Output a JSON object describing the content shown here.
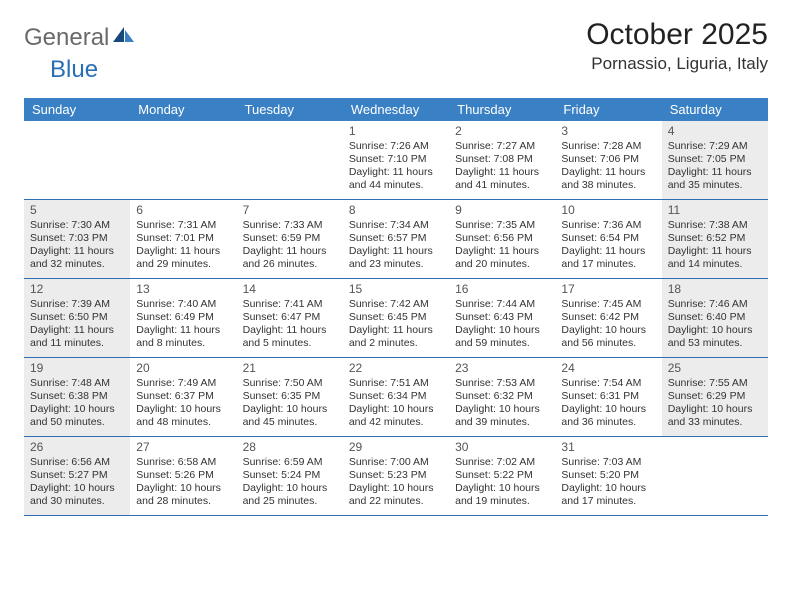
{
  "logo": {
    "gray": "General",
    "blue": "Blue"
  },
  "title": "October 2025",
  "location": "Pornassio, Liguria, Italy",
  "colors": {
    "header_bg": "#3a80c4",
    "header_text": "#ffffff",
    "border": "#2a6fb5",
    "shaded_bg": "#ececec",
    "logo_gray": "#6a6a6a",
    "logo_blue": "#2a6fb5"
  },
  "day_names": [
    "Sunday",
    "Monday",
    "Tuesday",
    "Wednesday",
    "Thursday",
    "Friday",
    "Saturday"
  ],
  "weeks": [
    [
      {
        "n": "",
        "shaded": false,
        "lines": []
      },
      {
        "n": "",
        "shaded": false,
        "lines": []
      },
      {
        "n": "",
        "shaded": false,
        "lines": []
      },
      {
        "n": "1",
        "shaded": false,
        "lines": [
          "Sunrise: 7:26 AM",
          "Sunset: 7:10 PM",
          "Daylight: 11 hours",
          "and 44 minutes."
        ]
      },
      {
        "n": "2",
        "shaded": false,
        "lines": [
          "Sunrise: 7:27 AM",
          "Sunset: 7:08 PM",
          "Daylight: 11 hours",
          "and 41 minutes."
        ]
      },
      {
        "n": "3",
        "shaded": false,
        "lines": [
          "Sunrise: 7:28 AM",
          "Sunset: 7:06 PM",
          "Daylight: 11 hours",
          "and 38 minutes."
        ]
      },
      {
        "n": "4",
        "shaded": true,
        "lines": [
          "Sunrise: 7:29 AM",
          "Sunset: 7:05 PM",
          "Daylight: 11 hours",
          "and 35 minutes."
        ]
      }
    ],
    [
      {
        "n": "5",
        "shaded": true,
        "lines": [
          "Sunrise: 7:30 AM",
          "Sunset: 7:03 PM",
          "Daylight: 11 hours",
          "and 32 minutes."
        ]
      },
      {
        "n": "6",
        "shaded": false,
        "lines": [
          "Sunrise: 7:31 AM",
          "Sunset: 7:01 PM",
          "Daylight: 11 hours",
          "and 29 minutes."
        ]
      },
      {
        "n": "7",
        "shaded": false,
        "lines": [
          "Sunrise: 7:33 AM",
          "Sunset: 6:59 PM",
          "Daylight: 11 hours",
          "and 26 minutes."
        ]
      },
      {
        "n": "8",
        "shaded": false,
        "lines": [
          "Sunrise: 7:34 AM",
          "Sunset: 6:57 PM",
          "Daylight: 11 hours",
          "and 23 minutes."
        ]
      },
      {
        "n": "9",
        "shaded": false,
        "lines": [
          "Sunrise: 7:35 AM",
          "Sunset: 6:56 PM",
          "Daylight: 11 hours",
          "and 20 minutes."
        ]
      },
      {
        "n": "10",
        "shaded": false,
        "lines": [
          "Sunrise: 7:36 AM",
          "Sunset: 6:54 PM",
          "Daylight: 11 hours",
          "and 17 minutes."
        ]
      },
      {
        "n": "11",
        "shaded": true,
        "lines": [
          "Sunrise: 7:38 AM",
          "Sunset: 6:52 PM",
          "Daylight: 11 hours",
          "and 14 minutes."
        ]
      }
    ],
    [
      {
        "n": "12",
        "shaded": true,
        "lines": [
          "Sunrise: 7:39 AM",
          "Sunset: 6:50 PM",
          "Daylight: 11 hours",
          "and 11 minutes."
        ]
      },
      {
        "n": "13",
        "shaded": false,
        "lines": [
          "Sunrise: 7:40 AM",
          "Sunset: 6:49 PM",
          "Daylight: 11 hours",
          "and 8 minutes."
        ]
      },
      {
        "n": "14",
        "shaded": false,
        "lines": [
          "Sunrise: 7:41 AM",
          "Sunset: 6:47 PM",
          "Daylight: 11 hours",
          "and 5 minutes."
        ]
      },
      {
        "n": "15",
        "shaded": false,
        "lines": [
          "Sunrise: 7:42 AM",
          "Sunset: 6:45 PM",
          "Daylight: 11 hours",
          "and 2 minutes."
        ]
      },
      {
        "n": "16",
        "shaded": false,
        "lines": [
          "Sunrise: 7:44 AM",
          "Sunset: 6:43 PM",
          "Daylight: 10 hours",
          "and 59 minutes."
        ]
      },
      {
        "n": "17",
        "shaded": false,
        "lines": [
          "Sunrise: 7:45 AM",
          "Sunset: 6:42 PM",
          "Daylight: 10 hours",
          "and 56 minutes."
        ]
      },
      {
        "n": "18",
        "shaded": true,
        "lines": [
          "Sunrise: 7:46 AM",
          "Sunset: 6:40 PM",
          "Daylight: 10 hours",
          "and 53 minutes."
        ]
      }
    ],
    [
      {
        "n": "19",
        "shaded": true,
        "lines": [
          "Sunrise: 7:48 AM",
          "Sunset: 6:38 PM",
          "Daylight: 10 hours",
          "and 50 minutes."
        ]
      },
      {
        "n": "20",
        "shaded": false,
        "lines": [
          "Sunrise: 7:49 AM",
          "Sunset: 6:37 PM",
          "Daylight: 10 hours",
          "and 48 minutes."
        ]
      },
      {
        "n": "21",
        "shaded": false,
        "lines": [
          "Sunrise: 7:50 AM",
          "Sunset: 6:35 PM",
          "Daylight: 10 hours",
          "and 45 minutes."
        ]
      },
      {
        "n": "22",
        "shaded": false,
        "lines": [
          "Sunrise: 7:51 AM",
          "Sunset: 6:34 PM",
          "Daylight: 10 hours",
          "and 42 minutes."
        ]
      },
      {
        "n": "23",
        "shaded": false,
        "lines": [
          "Sunrise: 7:53 AM",
          "Sunset: 6:32 PM",
          "Daylight: 10 hours",
          "and 39 minutes."
        ]
      },
      {
        "n": "24",
        "shaded": false,
        "lines": [
          "Sunrise: 7:54 AM",
          "Sunset: 6:31 PM",
          "Daylight: 10 hours",
          "and 36 minutes."
        ]
      },
      {
        "n": "25",
        "shaded": true,
        "lines": [
          "Sunrise: 7:55 AM",
          "Sunset: 6:29 PM",
          "Daylight: 10 hours",
          "and 33 minutes."
        ]
      }
    ],
    [
      {
        "n": "26",
        "shaded": true,
        "lines": [
          "Sunrise: 6:56 AM",
          "Sunset: 5:27 PM",
          "Daylight: 10 hours",
          "and 30 minutes."
        ]
      },
      {
        "n": "27",
        "shaded": false,
        "lines": [
          "Sunrise: 6:58 AM",
          "Sunset: 5:26 PM",
          "Daylight: 10 hours",
          "and 28 minutes."
        ]
      },
      {
        "n": "28",
        "shaded": false,
        "lines": [
          "Sunrise: 6:59 AM",
          "Sunset: 5:24 PM",
          "Daylight: 10 hours",
          "and 25 minutes."
        ]
      },
      {
        "n": "29",
        "shaded": false,
        "lines": [
          "Sunrise: 7:00 AM",
          "Sunset: 5:23 PM",
          "Daylight: 10 hours",
          "and 22 minutes."
        ]
      },
      {
        "n": "30",
        "shaded": false,
        "lines": [
          "Sunrise: 7:02 AM",
          "Sunset: 5:22 PM",
          "Daylight: 10 hours",
          "and 19 minutes."
        ]
      },
      {
        "n": "31",
        "shaded": false,
        "lines": [
          "Sunrise: 7:03 AM",
          "Sunset: 5:20 PM",
          "Daylight: 10 hours",
          "and 17 minutes."
        ]
      },
      {
        "n": "",
        "shaded": false,
        "lines": []
      }
    ]
  ]
}
